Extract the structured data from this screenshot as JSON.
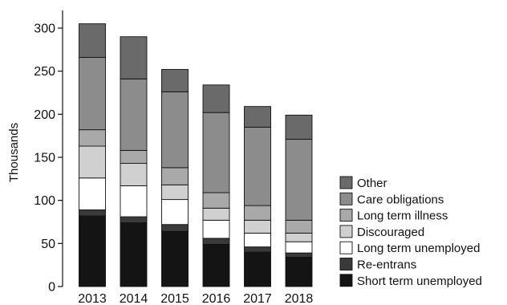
{
  "chart_data": {
    "type": "bar",
    "stacked": true,
    "categories": [
      "2013",
      "2014",
      "2015",
      "2016",
      "2017",
      "2018"
    ],
    "ylabel": "Thousands",
    "xlabel": "",
    "ylim": [
      0,
      320
    ],
    "yticks": [
      0,
      50,
      100,
      150,
      200,
      250,
      300
    ],
    "grid": false,
    "legend_position": "right",
    "series": [
      {
        "name": "Short term unemployed",
        "color": "#141414",
        "values": [
          82,
          74,
          64,
          49,
          40,
          34
        ]
      },
      {
        "name": "Re-entrans",
        "color": "#3a3a3a",
        "values": [
          7,
          7,
          8,
          7,
          6,
          5
        ]
      },
      {
        "name": "Long term unemployed",
        "color": "#ffffff",
        "values": [
          37,
          36,
          29,
          21,
          16,
          13
        ]
      },
      {
        "name": "Discouraged",
        "color": "#d0d0d0",
        "values": [
          37,
          26,
          17,
          14,
          15,
          10
        ]
      },
      {
        "name": "Long term illness",
        "color": "#a9a9a9",
        "values": [
          19,
          15,
          20,
          18,
          17,
          15
        ]
      },
      {
        "name": "Care obligations",
        "color": "#8c8c8c",
        "values": [
          84,
          83,
          88,
          93,
          91,
          94
        ]
      },
      {
        "name": "Other",
        "color": "#6a6a6a",
        "values": [
          39,
          49,
          26,
          32,
          24,
          28
        ]
      }
    ]
  }
}
